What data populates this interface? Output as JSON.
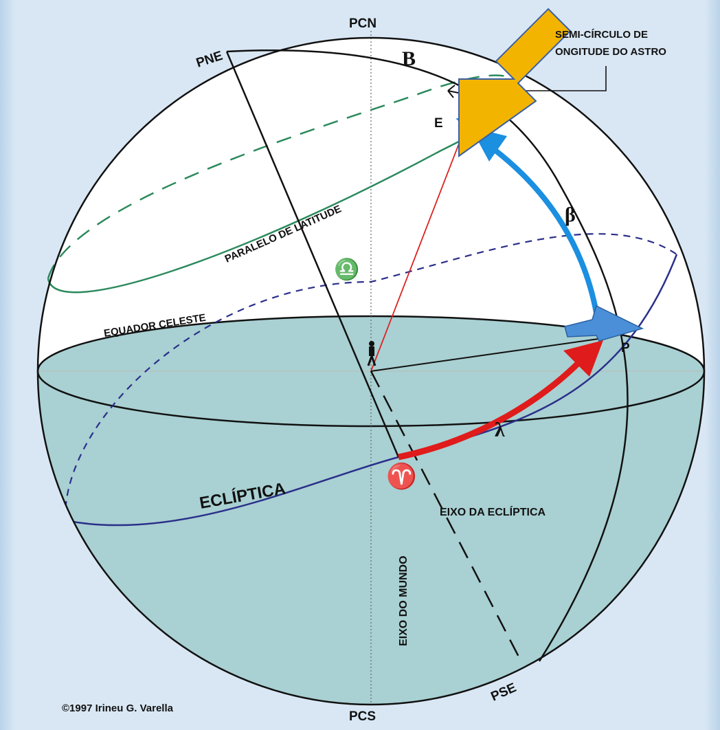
{
  "labels": {
    "pcn": "PCN",
    "pne": "PNE",
    "b": "B",
    "semi_circle_line1": "SEMI-CÍRCULO DE",
    "semi_circle_line2": "ONGITUDE  DO ASTRO",
    "e": "E",
    "beta": "β",
    "lambda": "λ",
    "paralelo": "PARALELO DE LATITUDE",
    "libra": "♎",
    "equador": "EQUADOR CELESTE",
    "p": "P",
    "ecliptica": "ECLÍPTICA",
    "aries": "♈",
    "eixo_ecliptica": "EIXO DA ECLÍPTICA",
    "eixo_mundo": "EIXO DO MUNDO",
    "pse": "PSE",
    "pcs": "PCS",
    "copyright": "©1997 Irineu G. Varella"
  },
  "colors": {
    "sea": "#a9d0d2",
    "ecliptic": "#2a2f8a",
    "parallel": "#2b8a5c",
    "lambda_arrow": "#e01b1b",
    "beta_arrow": "#1b8fe0",
    "pointer_arrow": "#f3b400",
    "p_marker": "#4a8fd8"
  }
}
